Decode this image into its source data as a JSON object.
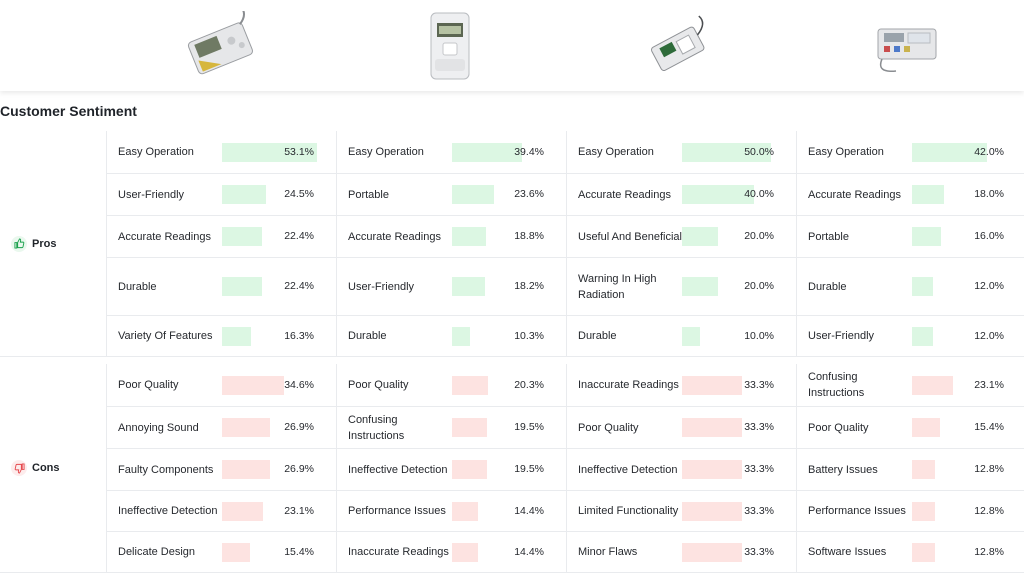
{
  "section_title": "Customer Sentiment",
  "colors": {
    "pro_bar": "#dcf7e3",
    "con_bar": "#fde3e1",
    "pro_icon": "#18a04b",
    "con_icon": "#e5484d"
  },
  "products": [
    {
      "name": "product-1-image"
    },
    {
      "name": "product-2-image"
    },
    {
      "name": "product-3-image"
    },
    {
      "name": "product-4-image"
    }
  ],
  "pros": {
    "label": "Pros",
    "icon": "thumbs-up-icon",
    "rows": [
      [
        {
          "label": "Easy Operation",
          "value": 53.1,
          "pct": "53.1%"
        },
        {
          "label": "Easy Operation",
          "value": 39.4,
          "pct": "39.4%"
        },
        {
          "label": "Easy Operation",
          "value": 50.0,
          "pct": "50.0%"
        },
        {
          "label": "Easy Operation",
          "value": 42.0,
          "pct": "42.0%"
        }
      ],
      [
        {
          "label": "User-Friendly",
          "value": 24.5,
          "pct": "24.5%"
        },
        {
          "label": "Portable",
          "value": 23.6,
          "pct": "23.6%"
        },
        {
          "label": "Accurate Readings",
          "value": 40.0,
          "pct": "40.0%"
        },
        {
          "label": "Accurate Readings",
          "value": 18.0,
          "pct": "18.0%"
        }
      ],
      [
        {
          "label": "Accurate Readings",
          "value": 22.4,
          "pct": "22.4%"
        },
        {
          "label": "Accurate Readings",
          "value": 18.8,
          "pct": "18.8%"
        },
        {
          "label": "Useful And Beneficial",
          "value": 20.0,
          "pct": "20.0%"
        },
        {
          "label": "Portable",
          "value": 16.0,
          "pct": "16.0%"
        }
      ],
      [
        {
          "label": "Durable",
          "value": 22.4,
          "pct": "22.4%"
        },
        {
          "label": "User-Friendly",
          "value": 18.2,
          "pct": "18.2%"
        },
        {
          "label": "Warning In High Radiation",
          "value": 20.0,
          "pct": "20.0%"
        },
        {
          "label": "Durable",
          "value": 12.0,
          "pct": "12.0%"
        }
      ],
      [
        {
          "label": "Variety Of Features",
          "value": 16.3,
          "pct": "16.3%"
        },
        {
          "label": "Durable",
          "value": 10.3,
          "pct": "10.3%"
        },
        {
          "label": "Durable",
          "value": 10.0,
          "pct": "10.0%"
        },
        {
          "label": "User-Friendly",
          "value": 12.0,
          "pct": "12.0%"
        }
      ]
    ]
  },
  "cons": {
    "label": "Cons",
    "icon": "thumbs-down-icon",
    "rows": [
      [
        {
          "label": "Poor Quality",
          "value": 34.6,
          "pct": "34.6%"
        },
        {
          "label": "Poor Quality",
          "value": 20.3,
          "pct": "20.3%"
        },
        {
          "label": "Inaccurate Readings",
          "value": 33.3,
          "pct": "33.3%"
        },
        {
          "label": "Confusing Instructions",
          "value": 23.1,
          "pct": "23.1%"
        }
      ],
      [
        {
          "label": "Annoying Sound",
          "value": 26.9,
          "pct": "26.9%"
        },
        {
          "label": "Confusing Instructions",
          "value": 19.5,
          "pct": "19.5%"
        },
        {
          "label": "Poor Quality",
          "value": 33.3,
          "pct": "33.3%"
        },
        {
          "label": "Poor Quality",
          "value": 15.4,
          "pct": "15.4%"
        }
      ],
      [
        {
          "label": "Faulty Components",
          "value": 26.9,
          "pct": "26.9%"
        },
        {
          "label": "Ineffective Detection",
          "value": 19.5,
          "pct": "19.5%"
        },
        {
          "label": "Ineffective Detection",
          "value": 33.3,
          "pct": "33.3%"
        },
        {
          "label": "Battery Issues",
          "value": 12.8,
          "pct": "12.8%"
        }
      ],
      [
        {
          "label": "Ineffective Detection",
          "value": 23.1,
          "pct": "23.1%"
        },
        {
          "label": "Performance Issues",
          "value": 14.4,
          "pct": "14.4%"
        },
        {
          "label": "Limited Functionality",
          "value": 33.3,
          "pct": "33.3%"
        },
        {
          "label": "Performance Issues",
          "value": 12.8,
          "pct": "12.8%"
        }
      ],
      [
        {
          "label": "Delicate Design",
          "value": 15.4,
          "pct": "15.4%"
        },
        {
          "label": "Inaccurate Readings",
          "value": 14.4,
          "pct": "14.4%"
        },
        {
          "label": "Minor Flaws",
          "value": 33.3,
          "pct": "33.3%"
        },
        {
          "label": "Software Issues",
          "value": 12.8,
          "pct": "12.8%"
        }
      ]
    ]
  }
}
